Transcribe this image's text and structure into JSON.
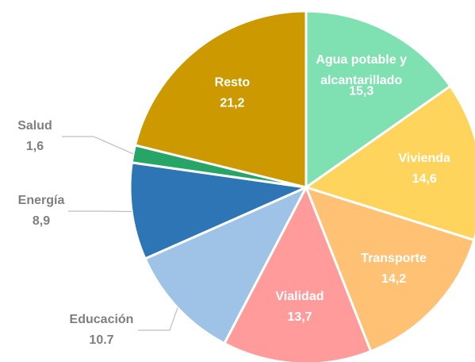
{
  "chart_data": {
    "type": "pie",
    "categories": [
      "Agua potable y alcantarillado",
      "Vivienda",
      "Transporte",
      "Vialidad",
      "Educación",
      "Energía",
      "Salud",
      "Resto"
    ],
    "values": [
      15.3,
      14.6,
      14.2,
      13.7,
      10.7,
      8.9,
      1.6,
      21.2
    ],
    "value_labels": [
      "15,3",
      "14,6",
      "14,2",
      "13,7",
      "10.7",
      "8,9",
      "1,6",
      "21,2"
    ],
    "colors": [
      "#7fe0b2",
      "#ffd45c",
      "#ffc173",
      "#ff9b9b",
      "#9fc3e6",
      "#2e75b6",
      "#27a567",
      "#cc9a00"
    ]
  }
}
